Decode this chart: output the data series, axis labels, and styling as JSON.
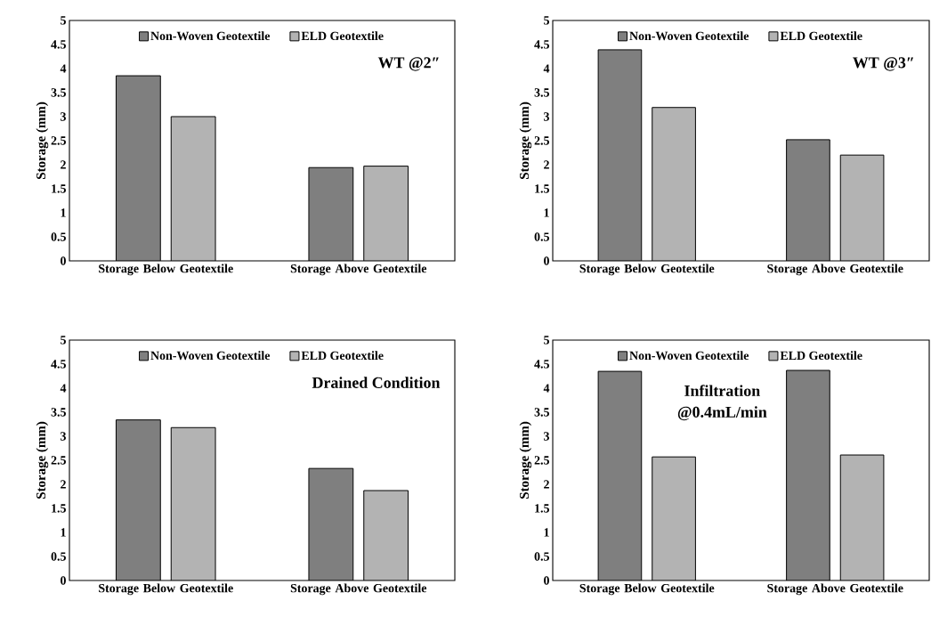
{
  "chart_data": [
    {
      "type": "bar",
      "ylabel": "Storage (mm)",
      "categories": [
        "Storage Below Geotextile",
        "Storage Above Geotextile"
      ],
      "series": [
        {
          "name": "Non-Woven Geotextile",
          "color": "#7f7f7f",
          "values": [
            3.85,
            1.94
          ]
        },
        {
          "name": "ELD Geotextile",
          "color": "#b3b3b3",
          "values": [
            3.0,
            1.97
          ]
        }
      ],
      "ylim": [
        0,
        5
      ],
      "yticks": [
        0,
        0.5,
        1,
        1.5,
        2,
        2.5,
        3,
        3.5,
        4,
        4.5,
        5
      ],
      "legend": "top",
      "annotations": [
        "WT @2″"
      ]
    },
    {
      "type": "bar",
      "ylabel": "Storage (mm)",
      "categories": [
        "Storage Below Geotextile",
        "Storage Above Geotextile"
      ],
      "series": [
        {
          "name": "Non-Woven Geotextile",
          "color": "#7f7f7f",
          "values": [
            4.39,
            2.52
          ]
        },
        {
          "name": "ELD Geotextile",
          "color": "#b3b3b3",
          "values": [
            3.19,
            2.2
          ]
        }
      ],
      "ylim": [
        0,
        5
      ],
      "yticks": [
        0,
        0.5,
        1,
        1.5,
        2,
        2.5,
        3,
        3.5,
        4,
        4.5,
        5
      ],
      "legend": "top",
      "annotations": [
        "WT @3″"
      ]
    },
    {
      "type": "bar",
      "ylabel": "Storage (mm)",
      "categories": [
        "Storage Below Geotextile",
        "Storage Above Geotextile"
      ],
      "series": [
        {
          "name": "Non-Woven Geotextile",
          "color": "#7f7f7f",
          "values": [
            3.34,
            2.33
          ]
        },
        {
          "name": "ELD Geotextile",
          "color": "#b3b3b3",
          "values": [
            3.18,
            1.87
          ]
        }
      ],
      "ylim": [
        0,
        5
      ],
      "yticks": [
        0,
        0.5,
        1,
        1.5,
        2,
        2.5,
        3,
        3.5,
        4,
        4.5,
        5
      ],
      "legend": "top",
      "annotations": [
        "Drained Condition"
      ]
    },
    {
      "type": "bar",
      "ylabel": "Storage (mm)",
      "categories": [
        "Storage Below Geotextile",
        "Storage Above Geotextile"
      ],
      "series": [
        {
          "name": "Non-Woven Geotextile",
          "color": "#7f7f7f",
          "values": [
            4.35,
            4.37
          ]
        },
        {
          "name": "ELD Geotextile",
          "color": "#b3b3b3",
          "values": [
            2.57,
            2.61
          ]
        }
      ],
      "ylim": [
        0,
        5
      ],
      "yticks": [
        0,
        0.5,
        1,
        1.5,
        2,
        2.5,
        3,
        3.5,
        4,
        4.5,
        5
      ],
      "legend": "top",
      "annotations": [
        "Infiltration @0.4mL/min"
      ]
    }
  ]
}
